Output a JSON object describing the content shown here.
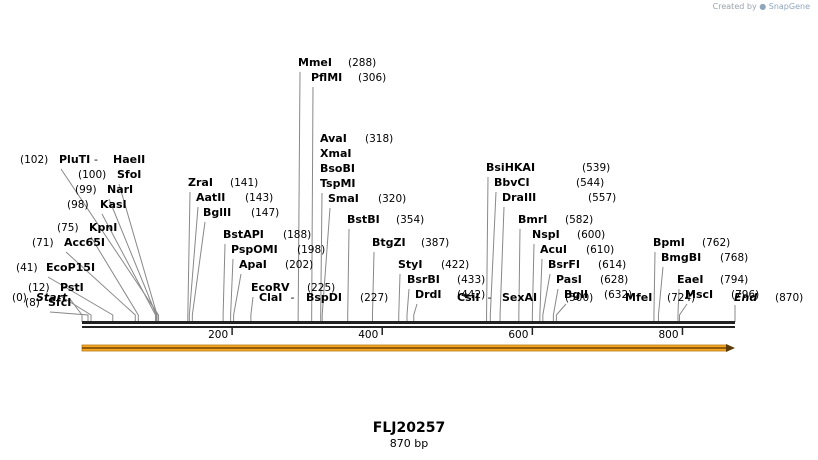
{
  "watermark": {
    "prefix": "Created by",
    "brand": "SnapGene"
  },
  "sequence": {
    "name": "FLJ20257",
    "length_label": "870 bp",
    "length": 870
  },
  "ruler_ticks": [
    {
      "pos": 200,
      "label": "200"
    },
    {
      "pos": 400,
      "label": "400"
    },
    {
      "pos": 600,
      "label": "600"
    },
    {
      "pos": 800,
      "label": "800"
    }
  ],
  "feature_arrow": {
    "start": 1,
    "end": 870,
    "direction": "forward",
    "color": "#f5a623"
  },
  "ends": {
    "start": {
      "name": "Start",
      "pos_label": "(0)"
    },
    "end": {
      "name": "End",
      "pos_label": "(870)"
    }
  },
  "sites": [
    {
      "names": [
        "SfcI"
      ],
      "pos": 8,
      "pos_label": "(8)"
    },
    {
      "names": [
        "PstI"
      ],
      "pos": 12,
      "pos_label": "(12)"
    },
    {
      "names": [
        "EcoP15I"
      ],
      "pos": 41,
      "pos_label": "(41)"
    },
    {
      "names": [
        "Acc65I"
      ],
      "pos": 71,
      "pos_label": "(71)"
    },
    {
      "names": [
        "KpnI"
      ],
      "pos": 75,
      "pos_label": "(75)"
    },
    {
      "names": [
        "KasI"
      ],
      "pos": 98,
      "pos_label": "(98)"
    },
    {
      "names": [
        "NarI"
      ],
      "pos": 99,
      "pos_label": "(99)"
    },
    {
      "names": [
        "SfoI"
      ],
      "pos": 100,
      "pos_label": "(100)"
    },
    {
      "names": [
        "PluTI",
        "HaeII"
      ],
      "pos": 102,
      "pos_label": "(102)"
    },
    {
      "names": [
        "ZraI"
      ],
      "pos": 141,
      "pos_label": "(141)"
    },
    {
      "names": [
        "AatII"
      ],
      "pos": 143,
      "pos_label": "(143)"
    },
    {
      "names": [
        "BglII"
      ],
      "pos": 147,
      "pos_label": "(147)"
    },
    {
      "names": [
        "BstAPI"
      ],
      "pos": 188,
      "pos_label": "(188)"
    },
    {
      "names": [
        "PspOMI"
      ],
      "pos": 198,
      "pos_label": "(198)"
    },
    {
      "names": [
        "ApaI"
      ],
      "pos": 202,
      "pos_label": "(202)"
    },
    {
      "names": [
        "EcoRV"
      ],
      "pos": 225,
      "pos_label": "(225)"
    },
    {
      "names": [
        "ClaI",
        "BspDI"
      ],
      "pos": 227,
      "pos_label": "(227)"
    },
    {
      "names": [
        "MmeI"
      ],
      "pos": 288,
      "pos_label": "(288)"
    },
    {
      "names": [
        "PflMI"
      ],
      "pos": 306,
      "pos_label": "(306)"
    },
    {
      "names": [
        "AvaI",
        "XmaI",
        "BsoBI",
        "TspMI"
      ],
      "pos": 318,
      "pos_label": "(318)"
    },
    {
      "names": [
        "SmaI"
      ],
      "pos": 320,
      "pos_label": "(320)"
    },
    {
      "names": [
        "BstBI"
      ],
      "pos": 354,
      "pos_label": "(354)"
    },
    {
      "names": [
        "BtgZI"
      ],
      "pos": 387,
      "pos_label": "(387)"
    },
    {
      "names": [
        "StyI"
      ],
      "pos": 422,
      "pos_label": "(422)"
    },
    {
      "names": [
        "BsrBI"
      ],
      "pos": 433,
      "pos_label": "(433)"
    },
    {
      "names": [
        "DrdI"
      ],
      "pos": 442,
      "pos_label": "(442)"
    },
    {
      "names": [
        "CsiI",
        "SexAI"
      ],
      "pos": 500,
      "pos_label": "(500)",
      "mark": "*"
    },
    {
      "names": [
        "BsiHKAI"
      ],
      "pos": 539,
      "pos_label": "(539)"
    },
    {
      "names": [
        "BbvCI"
      ],
      "pos": 544,
      "pos_label": "(544)"
    },
    {
      "names": [
        "DraIII"
      ],
      "pos": 557,
      "pos_label": "(557)"
    },
    {
      "names": [
        "BmrI"
      ],
      "pos": 582,
      "pos_label": "(582)"
    },
    {
      "names": [
        "NspI"
      ],
      "pos": 600,
      "pos_label": "(600)"
    },
    {
      "names": [
        "AcuI"
      ],
      "pos": 610,
      "pos_label": "(610)"
    },
    {
      "names": [
        "BsrFI"
      ],
      "pos": 614,
      "pos_label": "(614)"
    },
    {
      "names": [
        "PasI"
      ],
      "pos": 628,
      "pos_label": "(628)"
    },
    {
      "names": [
        "BglI"
      ],
      "pos": 632,
      "pos_label": "(632)"
    },
    {
      "names": [
        "MfeI"
      ],
      "pos": 724,
      "pos_label": "(724)"
    },
    {
      "names": [
        "BpmI"
      ],
      "pos": 762,
      "pos_label": "(762)"
    },
    {
      "names": [
        "BmgBI"
      ],
      "pos": 768,
      "pos_label": "(768)"
    },
    {
      "names": [
        "EaeI"
      ],
      "pos": 794,
      "pos_label": "(794)"
    },
    {
      "names": [
        "MscI"
      ],
      "pos": 796,
      "pos_label": "(796)"
    }
  ]
}
